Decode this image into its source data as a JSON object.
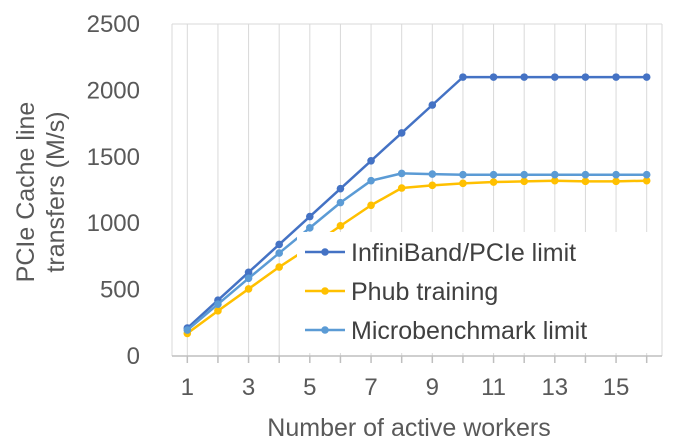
{
  "chart_data": {
    "type": "line",
    "xlabel": "Number of active workers",
    "ylabel_lines": [
      "PCIe Cache line",
      "transfers (M/s)"
    ],
    "x": [
      1,
      2,
      3,
      4,
      5,
      6,
      7,
      8,
      9,
      10,
      11,
      12,
      13,
      14,
      15,
      16
    ],
    "x_tick_labels": [
      "1",
      "3",
      "5",
      "7",
      "9",
      "11",
      "13",
      "15"
    ],
    "x_tick_values": [
      1,
      3,
      5,
      7,
      9,
      11,
      13,
      15
    ],
    "xlim": [
      0.5,
      16.5
    ],
    "ylim": [
      0,
      2500
    ],
    "y_ticks": [
      0,
      500,
      1000,
      1500,
      2000,
      2500
    ],
    "y_tick_labels": [
      "0",
      "500",
      "1000",
      "1500",
      "2000",
      "2500"
    ],
    "grid": "vertical",
    "legend_position": "lower-right",
    "series": [
      {
        "name": "InfiniBand/PCIe limit",
        "color": "#4472C4",
        "values": [
          210,
          420,
          630,
          840,
          1050,
          1260,
          1470,
          1680,
          1890,
          2100,
          2100,
          2100,
          2100,
          2100,
          2100,
          2100
        ]
      },
      {
        "name": "Phub training",
        "color": "#FFC000",
        "values": [
          170,
          340,
          505,
          670,
          820,
          980,
          1135,
          1265,
          1285,
          1300,
          1310,
          1315,
          1320,
          1315,
          1315,
          1320
        ]
      },
      {
        "name": "Microbenchmark limit",
        "color": "#5B9BD5",
        "values": [
          195,
          390,
          585,
          775,
          965,
          1155,
          1320,
          1375,
          1370,
          1365,
          1365,
          1365,
          1365,
          1365,
          1365,
          1365
        ]
      }
    ]
  }
}
